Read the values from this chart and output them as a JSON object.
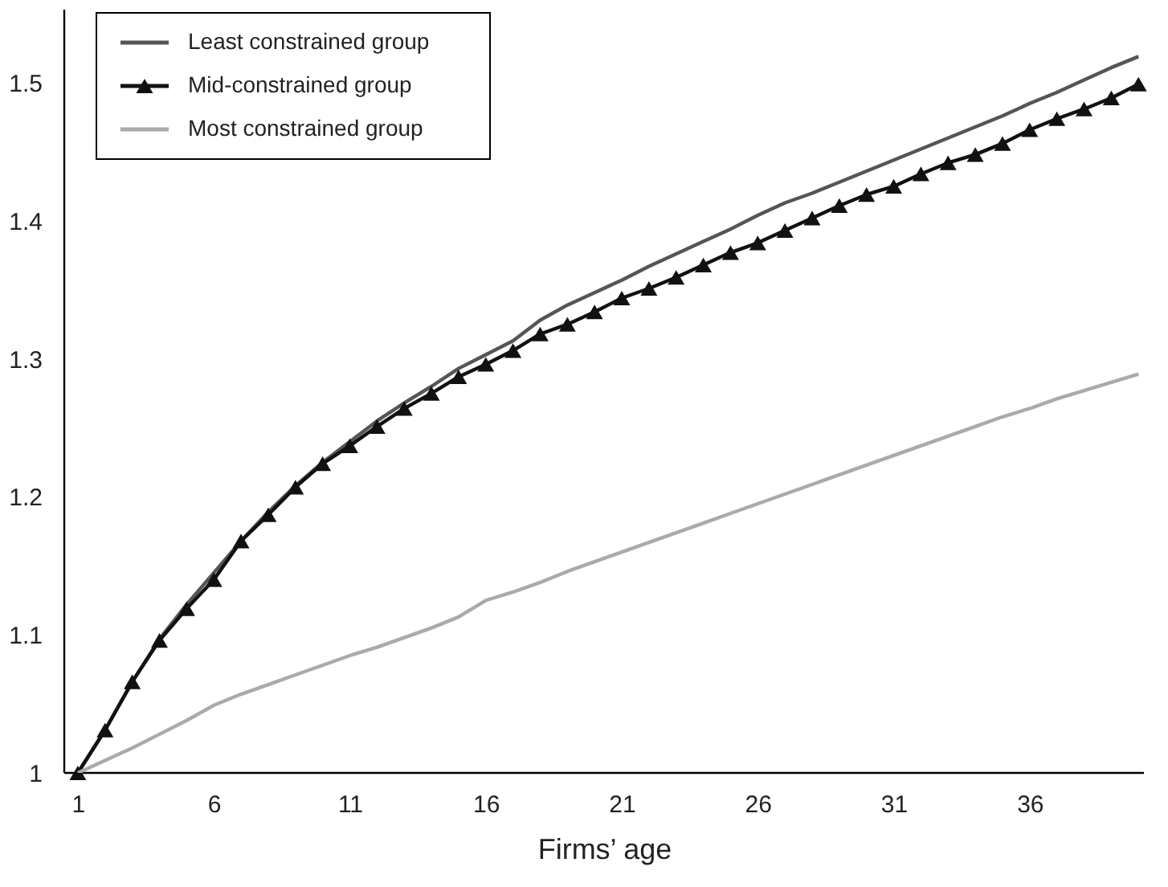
{
  "chart_data": {
    "type": "line",
    "xlabel": "Firms’ age",
    "x": [
      1,
      2,
      3,
      4,
      5,
      6,
      7,
      8,
      9,
      10,
      11,
      12,
      13,
      14,
      15,
      16,
      17,
      18,
      19,
      20,
      21,
      22,
      23,
      24,
      25,
      26,
      27,
      28,
      29,
      30,
      31,
      32,
      33,
      34,
      35,
      36,
      37,
      38,
      39,
      40
    ],
    "xlim": [
      0.5,
      40.2
    ],
    "xticks": [
      1,
      6,
      11,
      16,
      21,
      26,
      31,
      36
    ],
    "ylim": [
      1,
      1.553
    ],
    "yticks": [
      1,
      1.1,
      1.2,
      1.3,
      1.4,
      1.5
    ],
    "grid": false,
    "legend": "top left",
    "line_style": "solid",
    "series": [
      {
        "name": "Least constrained group",
        "color": "#555555",
        "marker": "none",
        "values": [
          1,
          1.031,
          1.066,
          1.097,
          1.122,
          1.145,
          1.168,
          1.189,
          1.208,
          1.225,
          1.24,
          1.255,
          1.268,
          1.28,
          1.293,
          1.303,
          1.313,
          1.328,
          1.339,
          1.348,
          1.357,
          1.367,
          1.376,
          1.385,
          1.394,
          1.404,
          1.413,
          1.42,
          1.428,
          1.436,
          1.444,
          1.452,
          1.46,
          1.468,
          1.476,
          1.485,
          1.493,
          1.502,
          1.511,
          1.519
        ]
      },
      {
        "name": "Mid-constrained group",
        "color": "#111111",
        "marker": "triangle",
        "values": [
          1,
          1.031,
          1.066,
          1.096,
          1.119,
          1.14,
          1.168,
          1.187,
          1.207,
          1.224,
          1.237,
          1.251,
          1.264,
          1.275,
          1.287,
          1.296,
          1.306,
          1.318,
          1.325,
          1.334,
          1.344,
          1.351,
          1.359,
          1.368,
          1.377,
          1.384,
          1.393,
          1.402,
          1.411,
          1.419,
          1.425,
          1.434,
          1.442,
          1.448,
          1.456,
          1.466,
          1.474,
          1.481,
          1.489,
          1.499
        ]
      },
      {
        "name": "Most constrained group",
        "color": "#aaaaaa",
        "marker": "none",
        "values": [
          1,
          1.009,
          1.018,
          1.028,
          1.038,
          1.049,
          1.057,
          1.064,
          1.071,
          1.078,
          1.085,
          1.091,
          1.098,
          1.105,
          1.113,
          1.125,
          1.131,
          1.138,
          1.146,
          1.153,
          1.16,
          1.167,
          1.174,
          1.181,
          1.188,
          1.195,
          1.202,
          1.209,
          1.216,
          1.223,
          1.23,
          1.237,
          1.244,
          1.251,
          1.258,
          1.264,
          1.271,
          1.277,
          1.283,
          1.289
        ]
      }
    ]
  }
}
